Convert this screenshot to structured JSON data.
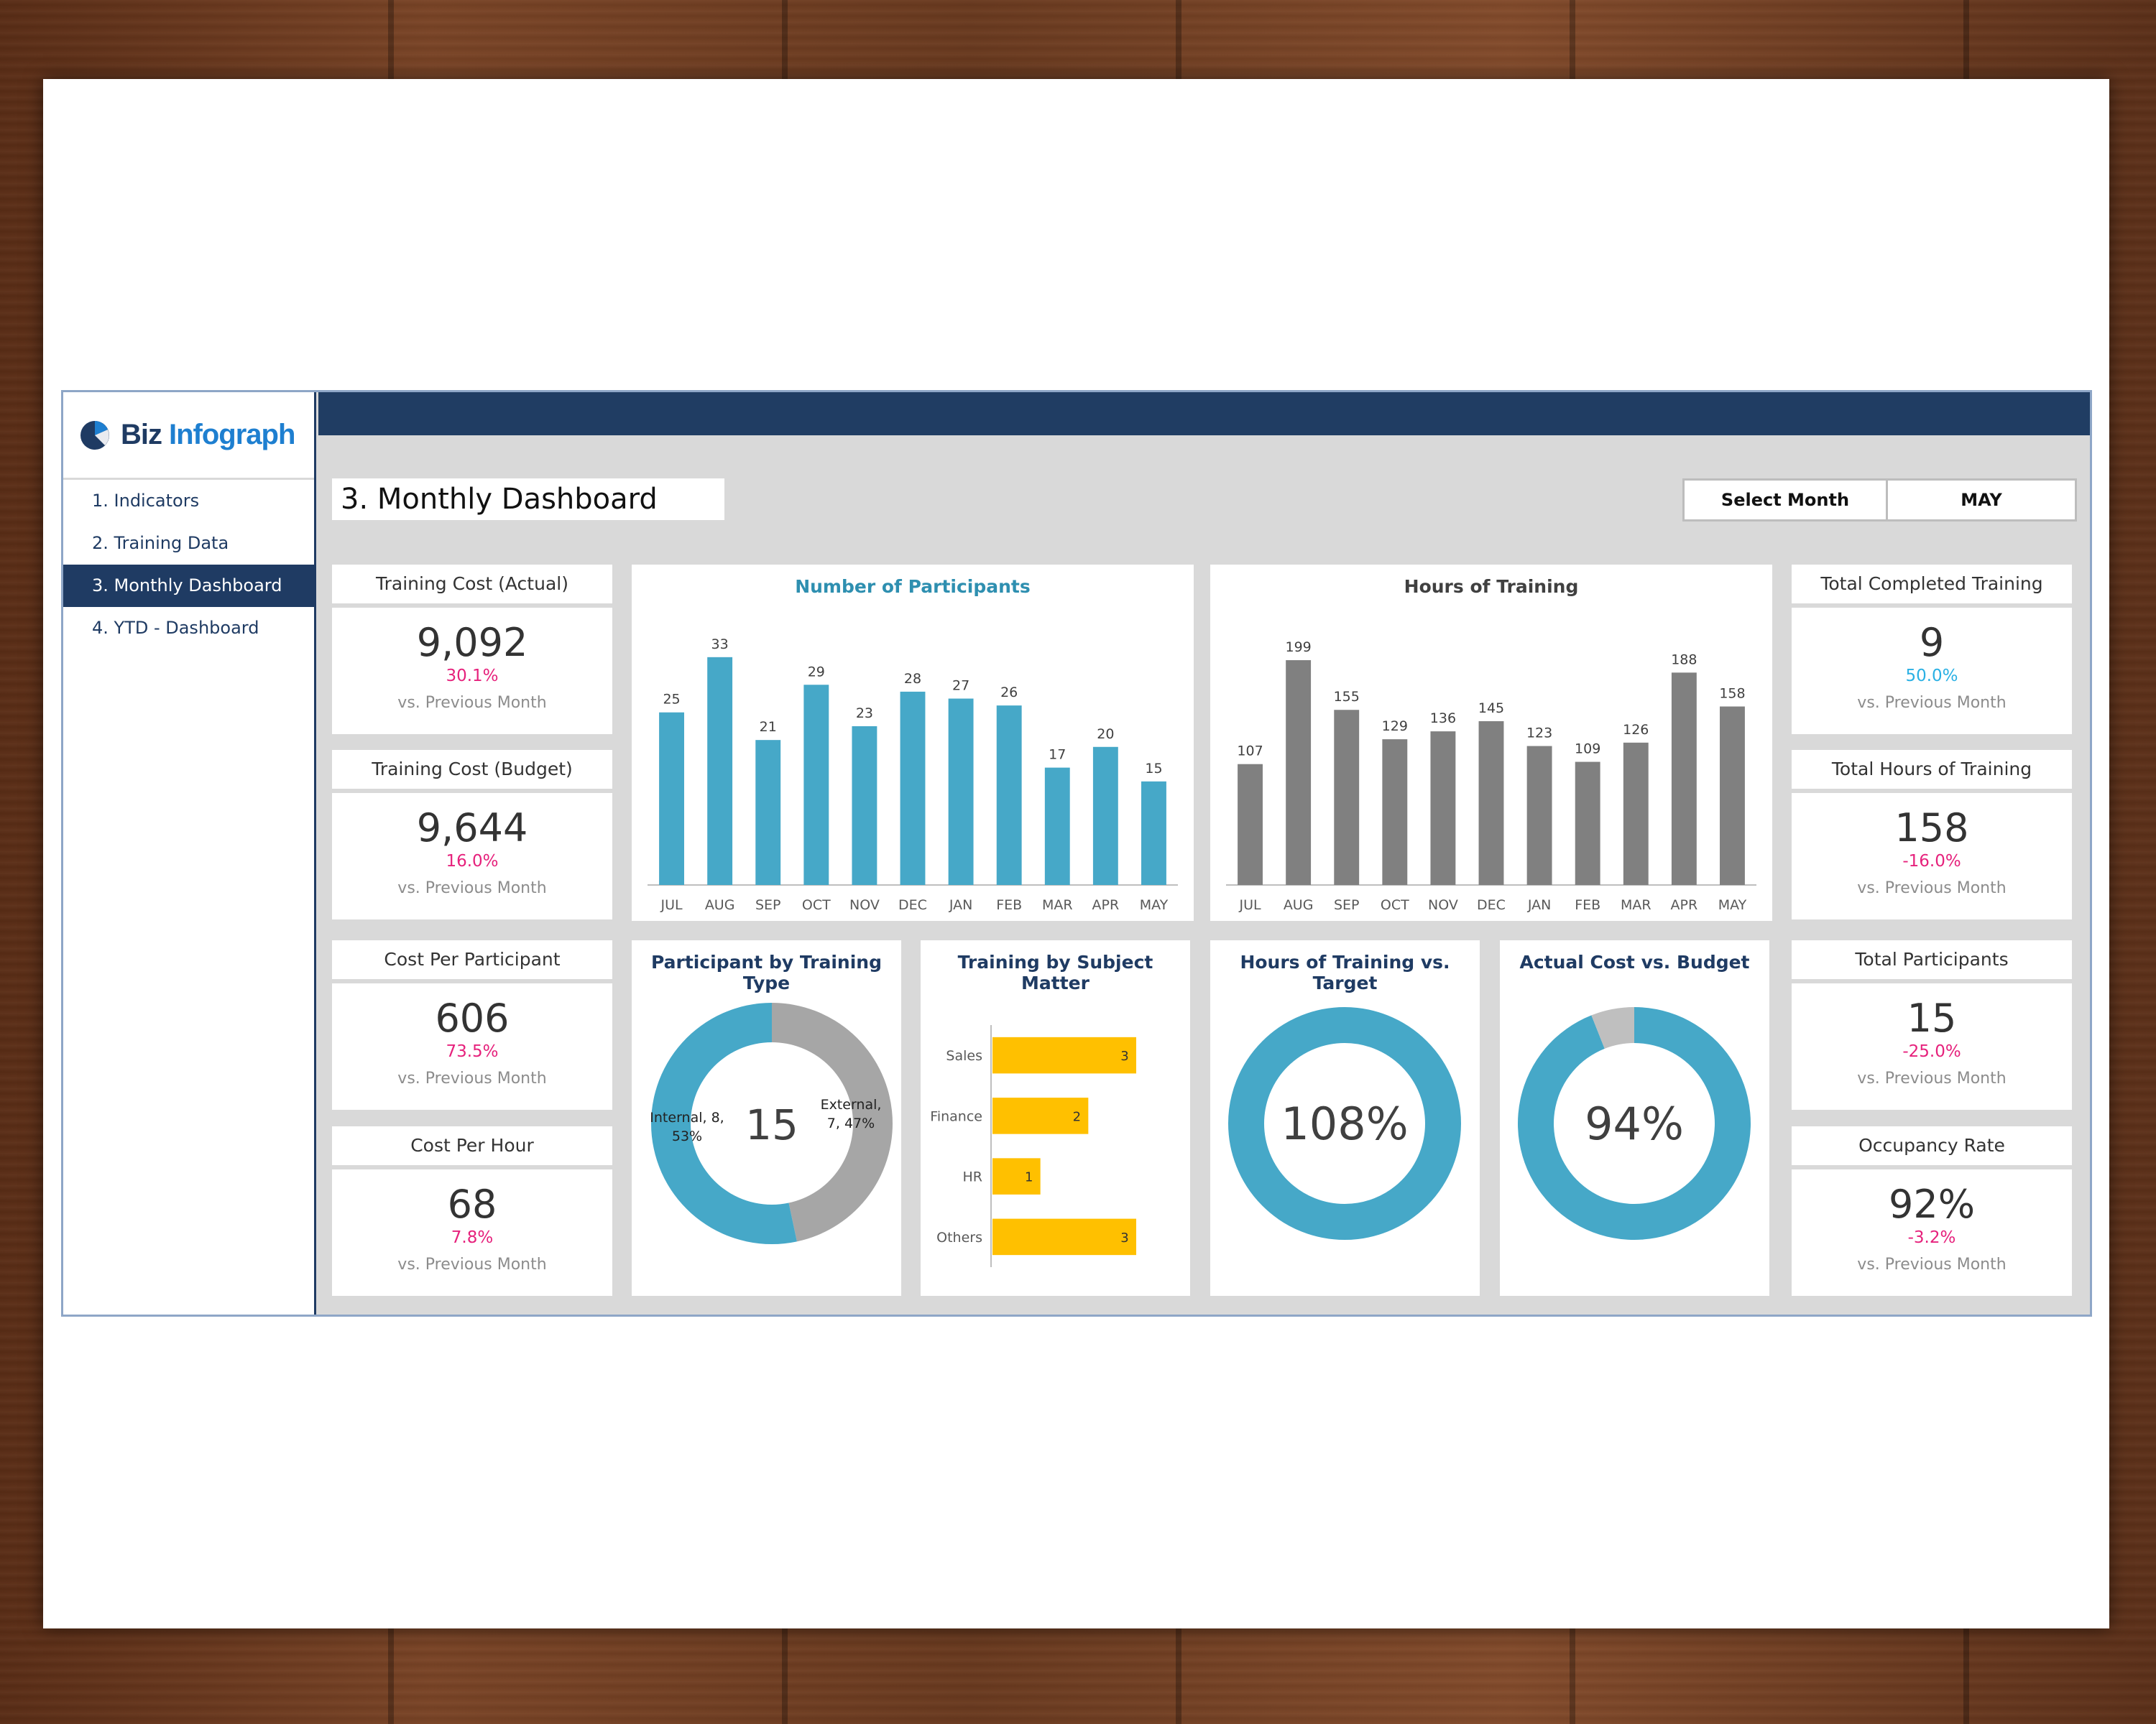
{
  "logo": {
    "part1": "Biz",
    "part2": "Infograph"
  },
  "nav": [
    {
      "label": "1. Indicators"
    },
    {
      "label": "2. Training Data"
    },
    {
      "label": "3. Monthly Dashboard"
    },
    {
      "label": "4. YTD - Dashboard"
    }
  ],
  "page_title": "3. Monthly Dashboard",
  "select_month": {
    "label": "Select Month",
    "value": "MAY"
  },
  "kpis": {
    "cost_actual": {
      "title": "Training Cost (Actual)",
      "value": "9,092",
      "pct": "30.1%",
      "sub": "vs. Previous Month"
    },
    "cost_budget": {
      "title": "Training Cost (Budget)",
      "value": "9,644",
      "pct": "16.0%",
      "sub": "vs. Previous Month"
    },
    "cost_participant": {
      "title": "Cost Per Participant",
      "value": "606",
      "pct": "73.5%",
      "sub": "vs. Previous Month"
    },
    "cost_hour": {
      "title": "Cost Per Hour",
      "value": "68",
      "pct": "7.8%",
      "sub": "vs. Previous Month"
    },
    "completed": {
      "title": "Total Completed Training",
      "value": "9",
      "pct": "50.0%",
      "sub": "vs. Previous Month"
    },
    "hours": {
      "title": "Total Hours of Training",
      "value": "158",
      "pct": "-16.0%",
      "sub": "vs. Previous Month"
    },
    "participants": {
      "title": "Total Participants",
      "value": "15",
      "pct": "-25.0%",
      "sub": "vs. Previous Month"
    },
    "occupancy": {
      "title": "Occupancy Rate",
      "value": "92%",
      "pct": "-3.2%",
      "sub": "vs. Previous Month"
    }
  },
  "colors": {
    "blue": "#46a8c8",
    "gray": "#808080",
    "lightgray": "#a6a6a6",
    "yellow": "#ffc000",
    "navy": "#1f3b63",
    "pink": "#e6217c",
    "cyan": "#2ab0e4"
  },
  "chart_data": [
    {
      "type": "bar",
      "title": "Number of Participants",
      "categories": [
        "JUL",
        "AUG",
        "SEP",
        "OCT",
        "NOV",
        "DEC",
        "JAN",
        "FEB",
        "MAR",
        "APR",
        "MAY"
      ],
      "values": [
        25,
        33,
        21,
        29,
        23,
        28,
        27,
        26,
        17,
        20,
        15
      ],
      "ylim": [
        0,
        36
      ]
    },
    {
      "type": "bar",
      "title": "Hours of Training",
      "categories": [
        "JUL",
        "AUG",
        "SEP",
        "OCT",
        "NOV",
        "DEC",
        "JAN",
        "FEB",
        "MAR",
        "APR",
        "MAY"
      ],
      "values": [
        107,
        199,
        155,
        129,
        136,
        145,
        123,
        109,
        126,
        188,
        158
      ],
      "ylim": [
        0,
        220
      ]
    },
    {
      "type": "pie",
      "title": "Participant by Training Type",
      "center_label": "15",
      "slices": [
        {
          "name": "Internal",
          "value": 8,
          "label": "Internal, 8, 53%"
        },
        {
          "name": "External",
          "value": 7,
          "label": "External, 7, 47%"
        }
      ]
    },
    {
      "type": "bar",
      "orientation": "horizontal",
      "title": "Training by Subject Matter",
      "categories": [
        "Sales",
        "Finance",
        "HR",
        "Others"
      ],
      "values": [
        3,
        2,
        1,
        3
      ],
      "xlim": [
        0,
        3
      ]
    },
    {
      "type": "pie",
      "title": "Hours of Training vs. Target",
      "center_label": "108%",
      "value": 1.08
    },
    {
      "type": "pie",
      "title": "Actual Cost vs. Budget",
      "center_label": "94%",
      "value": 0.94
    }
  ]
}
